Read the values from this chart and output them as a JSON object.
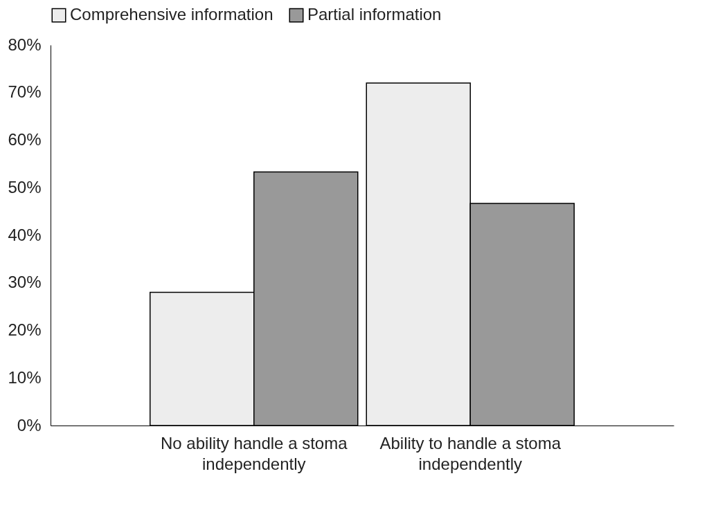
{
  "chart_data": {
    "type": "bar",
    "categories": [
      "No ability handle a stoma independently",
      "Ability to handle a stoma independently"
    ],
    "series": [
      {
        "name": "Comprehensive information",
        "color": "#ededed",
        "values": [
          28,
          72
        ]
      },
      {
        "name": "Partial information",
        "color": "#999999",
        "values": [
          53.3,
          46.7
        ]
      }
    ],
    "ylim": [
      0,
      80
    ],
    "yticks": [
      {
        "value": 0,
        "label": "0%"
      },
      {
        "value": 10,
        "label": "10%"
      },
      {
        "value": 20,
        "label": "20%"
      },
      {
        "value": 30,
        "label": "30%"
      },
      {
        "value": 40,
        "label": "40%"
      },
      {
        "value": 50,
        "label": "50%"
      },
      {
        "value": 60,
        "label": "60%"
      },
      {
        "value": 70,
        "label": "70%"
      },
      {
        "value": 80,
        "label": "80%"
      }
    ],
    "grid": false,
    "legend": "top"
  }
}
